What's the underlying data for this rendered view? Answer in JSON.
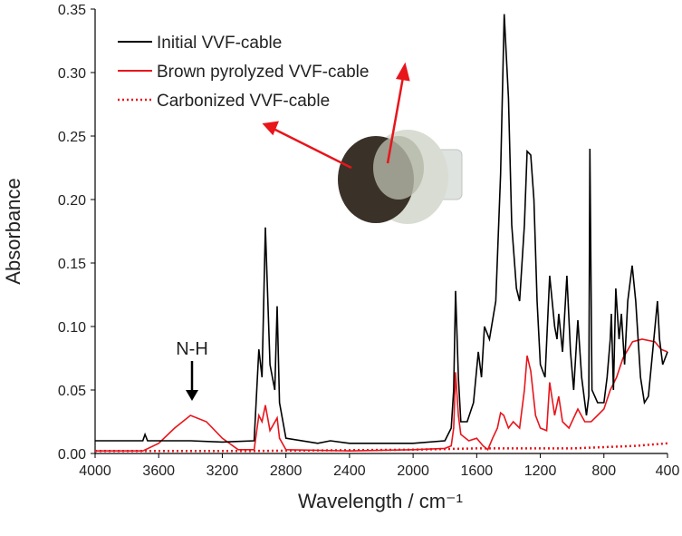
{
  "chart_data": {
    "type": "line",
    "x_label": "Wavelength / cm⁻¹",
    "y_label": "Absorbance",
    "xlim": [
      4000,
      400
    ],
    "xticks": [
      4000,
      3600,
      3200,
      2800,
      2400,
      2000,
      1600,
      1200,
      800,
      400
    ],
    "ylim": [
      0,
      0.35
    ],
    "yticks": [
      {
        "value": 0,
        "label": "0.00"
      },
      0.05,
      {
        "value": 0.1,
        "label": "0.10"
      },
      0.15,
      {
        "value": 0.2,
        "label": "0.20"
      },
      0.25,
      {
        "value": 0.3,
        "label": "0.30"
      },
      0.35
    ],
    "legend": "upper left",
    "annotations": [
      {
        "text": "N-H",
        "x": 3400,
        "y": 0.045
      }
    ],
    "series": [
      {
        "name": "Initial VVF-cable",
        "color": "#000000",
        "linestyle": "solid",
        "x": [
          4000,
          3700,
          3686,
          3670,
          3400,
          3200,
          3000,
          2970,
          2950,
          2929,
          2900,
          2870,
          2855,
          2840,
          2800,
          2600,
          2520,
          2400,
          2000,
          1800,
          1760,
          1745,
          1733,
          1715,
          1700,
          1660,
          1620,
          1590,
          1570,
          1551,
          1520,
          1480,
          1450,
          1427,
          1400,
          1380,
          1350,
          1330,
          1300,
          1283,
          1260,
          1240,
          1220,
          1200,
          1170,
          1141,
          1110,
          1095,
          1084,
          1060,
          1033,
          1010,
          990,
          964,
          940,
          910,
          895,
          888,
          875,
          840,
          800,
          780,
          760,
          753,
          740,
          725,
          705,
          690,
          670,
          650,
          622,
          600,
          570,
          545,
          520,
          463,
          450,
          430,
          400
        ],
        "values": [
          0.01,
          0.01,
          0.015,
          0.01,
          0.01,
          0.009,
          0.01,
          0.082,
          0.06,
          0.178,
          0.07,
          0.05,
          0.116,
          0.04,
          0.012,
          0.008,
          0.01,
          0.008,
          0.008,
          0.01,
          0.02,
          0.05,
          0.128,
          0.06,
          0.025,
          0.025,
          0.04,
          0.08,
          0.06,
          0.1,
          0.09,
          0.12,
          0.22,
          0.346,
          0.28,
          0.18,
          0.13,
          0.12,
          0.18,
          0.238,
          0.235,
          0.2,
          0.12,
          0.07,
          0.06,
          0.14,
          0.1,
          0.09,
          0.11,
          0.08,
          0.14,
          0.08,
          0.05,
          0.105,
          0.06,
          0.03,
          0.045,
          0.24,
          0.05,
          0.04,
          0.04,
          0.06,
          0.09,
          0.11,
          0.05,
          0.13,
          0.09,
          0.11,
          0.07,
          0.12,
          0.148,
          0.12,
          0.06,
          0.04,
          0.045,
          0.12,
          0.09,
          0.07,
          0.08
        ]
      },
      {
        "name": "Brown pyrolyzed VVF-cable",
        "color": "#e8151b",
        "linestyle": "solid",
        "x": [
          4000,
          3700,
          3600,
          3500,
          3400,
          3300,
          3200,
          3100,
          3000,
          2970,
          2950,
          2929,
          2900,
          2855,
          2840,
          2800,
          2400,
          2000,
          1800,
          1760,
          1745,
          1733,
          1715,
          1700,
          1650,
          1600,
          1560,
          1530,
          1500,
          1470,
          1450,
          1430,
          1400,
          1370,
          1330,
          1300,
          1283,
          1260,
          1230,
          1200,
          1160,
          1141,
          1110,
          1084,
          1060,
          1020,
          964,
          920,
          880,
          840,
          800,
          760,
          720,
          680,
          620,
          560,
          480,
          440,
          400
        ],
        "values": [
          0.002,
          0.002,
          0.008,
          0.02,
          0.03,
          0.025,
          0.012,
          0.003,
          0.003,
          0.03,
          0.025,
          0.038,
          0.018,
          0.028,
          0.012,
          0.003,
          0.002,
          0.003,
          0.004,
          0.006,
          0.02,
          0.064,
          0.03,
          0.015,
          0.01,
          0.012,
          0.006,
          0.003,
          0.012,
          0.02,
          0.032,
          0.03,
          0.02,
          0.025,
          0.02,
          0.05,
          0.077,
          0.065,
          0.03,
          0.02,
          0.018,
          0.056,
          0.03,
          0.045,
          0.025,
          0.02,
          0.035,
          0.025,
          0.025,
          0.03,
          0.035,
          0.05,
          0.06,
          0.075,
          0.088,
          0.09,
          0.088,
          0.082,
          0.08
        ]
      },
      {
        "name": "Carbonized VVF-cable",
        "color": "#e8151b",
        "linestyle": "dotted",
        "x": [
          4000,
          3000,
          2000,
          1600,
          1000,
          600,
          400
        ],
        "values": [
          0.002,
          0.002,
          0.003,
          0.004,
          0.004,
          0.006,
          0.008
        ]
      }
    ]
  }
}
